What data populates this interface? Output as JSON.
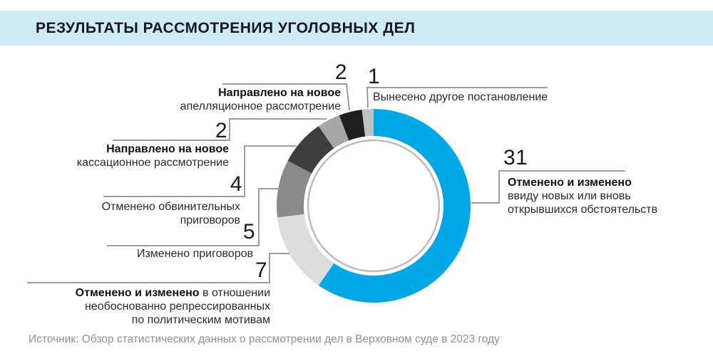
{
  "header": {
    "title": "РЕЗУЛЬТАТЫ РАССМОТРЕНИЯ УГОЛОВНЫХ ДЕЛ",
    "band_color": "#cdeaf6"
  },
  "chart_data": {
    "type": "pie",
    "subtype": "donut",
    "title": "Результаты рассмотрения уголовных дел",
    "total": 52,
    "start_angle_deg": 0,
    "direction": "clockwise",
    "legend_position": "callouts",
    "segments": [
      {
        "value": 31,
        "color": "#00a7e6",
        "label": "Отменено и изменено ввиду новых или вновь открывшихся обстоятельств"
      },
      {
        "value": 7,
        "color": "#dcdcdc",
        "label": "Отменено и изменено в отношении необоснованно репрессированных по политическим мотивам"
      },
      {
        "value": 5,
        "color": "#8a8a8a",
        "label": "Изменено приговоров"
      },
      {
        "value": 4,
        "color": "#3e3e3e",
        "label": "Отменено обвинительных приговоров"
      },
      {
        "value": 2,
        "color": "#a7a7a7",
        "label": "Направлено на новое кассационное рассмотрение"
      },
      {
        "value": 2,
        "color": "#1f1f1f",
        "label": "Направлено на новое апелляционное рассмотрение"
      },
      {
        "value": 1,
        "color": "#c2c2c2",
        "label": "Вынесено другое постановление"
      }
    ]
  },
  "callouts": {
    "c31": {
      "bold": "Отменено и изменено",
      "line2": "ввиду новых или вновь",
      "line3": "открывшихся обстоятельств"
    },
    "c7": {
      "bold": "Отменено и изменено",
      "rest": "в отношении",
      "line2": "необоснованно репрессированных",
      "line3": "по политическим мотивам"
    },
    "c5": {
      "line1": "Изменено приговоров"
    },
    "c4": {
      "line1": "Отменено обвинительных",
      "line2": "приговоров"
    },
    "c2k": {
      "bold": "Направлено на новое",
      "line2": "кассационное рассмотрение"
    },
    "c2a": {
      "bold": "Направлено на новое",
      "line2": "апелляционное рассмотрение"
    },
    "c1": {
      "line1": "Вынесено другое постановление"
    }
  },
  "source": {
    "text": "Источник: Обзор статистических данных о рассмотрении дел в Верховном суде в 2023 году"
  }
}
